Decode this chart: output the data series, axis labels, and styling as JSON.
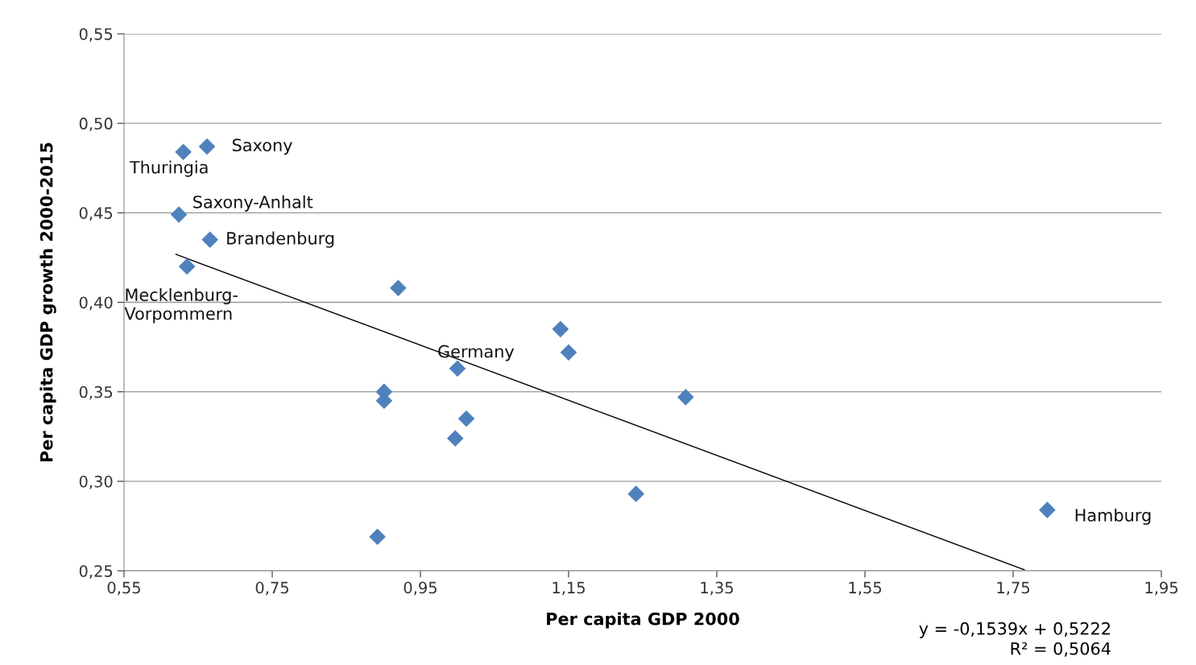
{
  "chart_data": {
    "type": "scatter",
    "xlabel": "Per capita GDP 2000",
    "ylabel": "Per capita GDP growth 2000-2015",
    "xlim": [
      0.55,
      1.95
    ],
    "ylim": [
      0.25,
      0.55
    ],
    "xticks": [
      {
        "value": 0.55,
        "label": "0,55"
      },
      {
        "value": 0.75,
        "label": "0,75"
      },
      {
        "value": 0.95,
        "label": "0,95"
      },
      {
        "value": 1.15,
        "label": "1,15"
      },
      {
        "value": 1.35,
        "label": "1,35"
      },
      {
        "value": 1.55,
        "label": "1,55"
      },
      {
        "value": 1.75,
        "label": "1,75"
      },
      {
        "value": 1.95,
        "label": "1,95"
      }
    ],
    "yticks": [
      {
        "value": 0.25,
        "label": "0,25"
      },
      {
        "value": 0.3,
        "label": "0,30"
      },
      {
        "value": 0.35,
        "label": "0,35"
      },
      {
        "value": 0.4,
        "label": "0,40"
      },
      {
        "value": 0.45,
        "label": "0,45"
      },
      {
        "value": 0.5,
        "label": "0,50"
      },
      {
        "value": 0.55,
        "label": "0,55"
      }
    ],
    "grid": "y",
    "marker": "diamond",
    "series": [
      {
        "color": "#4f81bd",
        "x": [
          0.63,
          0.662,
          0.624,
          0.666,
          0.635,
          0.92,
          1.139,
          1.15,
          1.0,
          0.901,
          0.901,
          1.012,
          0.997,
          1.308,
          1.241,
          0.892,
          1.796
        ],
        "values": [
          0.484,
          0.487,
          0.449,
          0.435,
          0.42,
          0.408,
          0.385,
          0.372,
          0.363,
          0.35,
          0.345,
          0.335,
          0.324,
          0.347,
          0.293,
          0.269,
          0.284
        ]
      },
      {
        "type": "line",
        "marker": "none",
        "color": "#000000",
        "x": [
          0.62,
          1.765
        ],
        "values": [
          0.4268,
          0.2506
        ]
      }
    ],
    "annotations": [
      {
        "text": "Thuringia",
        "x": 0.63,
        "y": 0.484
      },
      {
        "text": "Saxony",
        "x": 0.662,
        "y": 0.487
      },
      {
        "text": "Saxony-Anhalt",
        "x": 0.624,
        "y": 0.449
      },
      {
        "text": "Brandenburg",
        "x": 0.666,
        "y": 0.435
      },
      {
        "text": "Mecklenburg-\nVorpommern",
        "x": 0.635,
        "y": 0.42
      },
      {
        "text": "Germany",
        "x": 1.0,
        "y": 0.363
      },
      {
        "text": "Hamburg",
        "x": 1.796,
        "y": 0.284
      },
      "y = -0,1539x + 0,5222\nR² = 0,5064"
    ]
  }
}
